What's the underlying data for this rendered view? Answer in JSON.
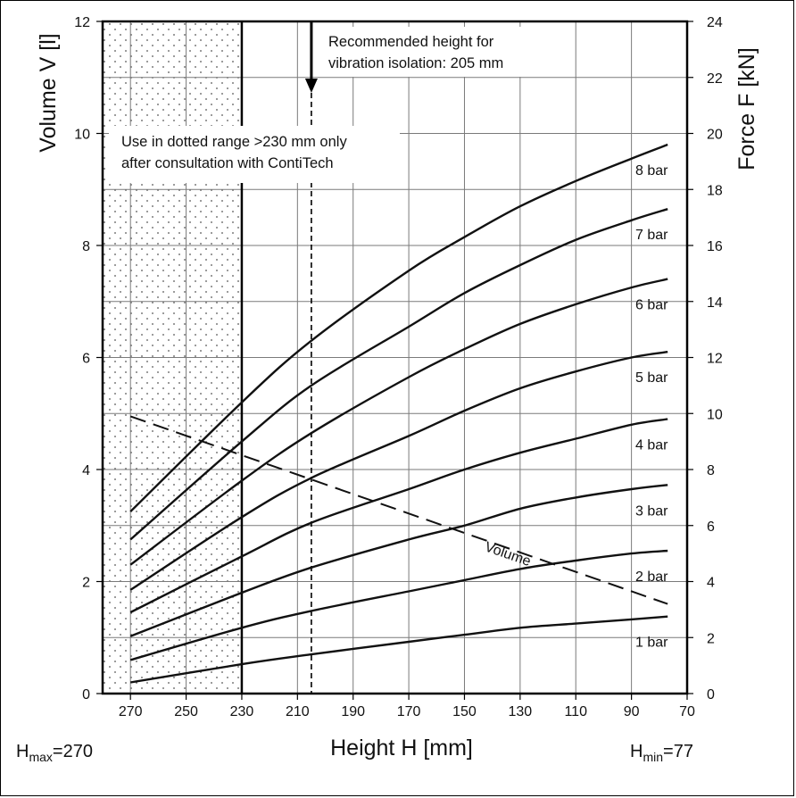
{
  "chart_data": {
    "type": "line",
    "x_label": "Height H [mm]",
    "y_left_label": "Volume V [l]",
    "y_right_label": "Force F [kN]",
    "x_ticks": [
      270,
      250,
      230,
      210,
      190,
      170,
      150,
      130,
      110,
      90,
      70
    ],
    "x_range": [
      280,
      70
    ],
    "x_reversed": true,
    "y_left_ticks": [
      0,
      2,
      4,
      6,
      8,
      10,
      12
    ],
    "y_left_range": [
      0,
      12
    ],
    "y_right_ticks": [
      0,
      2,
      4,
      6,
      8,
      10,
      12,
      14,
      16,
      18,
      20,
      22,
      24
    ],
    "y_right_range": [
      0,
      24
    ],
    "grid": true,
    "dotted_region": {
      "x_from": 280,
      "x_to": 230
    },
    "recommended_height": 205,
    "hmax_label": {
      "main": "H",
      "sub": "max",
      "value": "=270"
    },
    "hmin_label": {
      "main": "H",
      "sub": "min",
      "value": "=77"
    },
    "annotations": {
      "recommended": [
        "Recommended height for",
        "vibration isolation: 205 mm"
      ],
      "dotted_note": [
        "Use in dotted range >230 mm only",
        "after consultation with ContiTech"
      ]
    },
    "force_series": [
      {
        "name": "8 bar",
        "x": [
          270,
          230,
          205,
          170,
          150,
          130,
          110,
          90,
          77
        ],
        "y": [
          6.5,
          10.4,
          12.6,
          15.1,
          16.3,
          17.4,
          18.3,
          19.1,
          19.6
        ]
      },
      {
        "name": "7 bar",
        "x": [
          270,
          230,
          205,
          170,
          150,
          130,
          110,
          90,
          77
        ],
        "y": [
          5.5,
          9.0,
          11.0,
          13.1,
          14.3,
          15.3,
          16.2,
          16.9,
          17.3
        ]
      },
      {
        "name": "6 bar",
        "x": [
          270,
          230,
          205,
          170,
          150,
          130,
          110,
          90,
          77
        ],
        "y": [
          4.6,
          7.6,
          9.3,
          11.3,
          12.3,
          13.2,
          13.9,
          14.5,
          14.8
        ]
      },
      {
        "name": "5 bar",
        "x": [
          270,
          230,
          205,
          170,
          150,
          130,
          110,
          90,
          77
        ],
        "y": [
          3.7,
          6.3,
          7.7,
          9.2,
          10.1,
          10.9,
          11.5,
          12.0,
          12.2
        ]
      },
      {
        "name": "4 bar",
        "x": [
          270,
          230,
          205,
          170,
          150,
          130,
          110,
          90,
          77
        ],
        "y": [
          2.9,
          4.9,
          6.1,
          7.3,
          8.0,
          8.6,
          9.1,
          9.6,
          9.8
        ]
      },
      {
        "name": "3 bar",
        "x": [
          270,
          230,
          205,
          170,
          150,
          130,
          110,
          90,
          77
        ],
        "y": [
          2.05,
          3.6,
          4.5,
          5.5,
          6.0,
          6.6,
          7.0,
          7.3,
          7.45
        ]
      },
      {
        "name": "2 bar",
        "x": [
          270,
          230,
          205,
          170,
          150,
          130,
          110,
          90,
          77
        ],
        "y": [
          1.2,
          2.35,
          2.95,
          3.65,
          4.05,
          4.45,
          4.75,
          5.0,
          5.1
        ]
      },
      {
        "name": "1 bar",
        "x": [
          270,
          230,
          205,
          170,
          150,
          130,
          110,
          90,
          77
        ],
        "y": [
          0.4,
          1.05,
          1.4,
          1.85,
          2.1,
          2.35,
          2.5,
          2.65,
          2.75
        ]
      }
    ],
    "volume_series": {
      "name": "Volume",
      "x": [
        270,
        77
      ],
      "y": [
        4.95,
        1.6
      ]
    }
  },
  "colors": {
    "line": "#111111",
    "grid": "#7a7a7a",
    "dots": "#555555",
    "background": "#ffffff"
  }
}
